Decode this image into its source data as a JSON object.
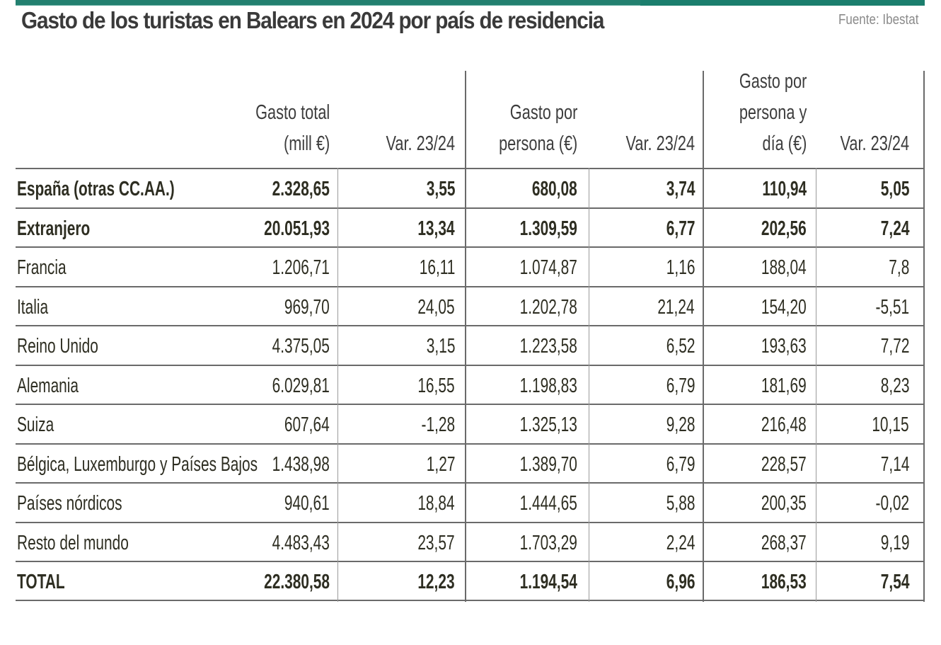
{
  "title": "Gasto de los turistas en Balears en 2024 por país de residencia",
  "source": "Fuente: Ibestat",
  "colors": {
    "accent_bar": "#1b7e6d",
    "text": "#2e2e22"
  },
  "chart_data": {
    "type": "table",
    "title": "Gasto de los turistas en Balears en 2024 por país de residencia",
    "columns": [
      [
        "Gasto total",
        "(mill €)"
      ],
      [
        "Var. 23/24"
      ],
      [
        "Gasto por",
        "persona (€)"
      ],
      [
        "Var. 23/24"
      ],
      [
        "Gasto por",
        "persona y",
        "día (€)"
      ],
      [
        "Var. 23/24"
      ]
    ],
    "rows": [
      {
        "label": "España (otras CC.AA.)",
        "bold": true,
        "values": [
          "2.328,65",
          "3,55",
          "680,08",
          "3,74",
          "110,94",
          "5,05"
        ]
      },
      {
        "label": "Extranjero",
        "bold": true,
        "values": [
          "20.051,93",
          "13,34",
          "1.309,59",
          "6,77",
          "202,56",
          "7,24"
        ]
      },
      {
        "label": "Francia",
        "bold": false,
        "values": [
          "1.206,71",
          "16,11",
          "1.074,87",
          "1,16",
          "188,04",
          "7,8"
        ]
      },
      {
        "label": "Italia",
        "bold": false,
        "values": [
          "969,70",
          "24,05",
          "1.202,78",
          "21,24",
          "154,20",
          "-5,51"
        ]
      },
      {
        "label": "Reino Unido",
        "bold": false,
        "values": [
          "4.375,05",
          "3,15",
          "1.223,58",
          "6,52",
          "193,63",
          "7,72"
        ]
      },
      {
        "label": "Alemania",
        "bold": false,
        "values": [
          "6.029,81",
          "16,55",
          "1.198,83",
          "6,79",
          "181,69",
          "8,23"
        ]
      },
      {
        "label": "Suiza",
        "bold": false,
        "values": [
          "607,64",
          "-1,28",
          "1.325,13",
          "9,28",
          "216,48",
          "10,15"
        ]
      },
      {
        "label": "Bélgica, Luxemburgo y Países Bajos",
        "bold": false,
        "values": [
          "1.438,98",
          "1,27",
          "1.389,70",
          "6,79",
          "228,57",
          "7,14"
        ]
      },
      {
        "label": "Países nórdicos",
        "bold": false,
        "values": [
          "940,61",
          "18,84",
          "1.444,65",
          "5,88",
          "200,35",
          "-0,02"
        ]
      },
      {
        "label": "Resto del mundo",
        "bold": false,
        "values": [
          "4.483,43",
          "23,57",
          "1.703,29",
          "2,24",
          "268,37",
          "9,19"
        ]
      },
      {
        "label": "TOTAL",
        "bold": true,
        "values": [
          "22.380,58",
          "12,23",
          "1.194,54",
          "6,96",
          "186,53",
          "7,54"
        ]
      }
    ]
  }
}
